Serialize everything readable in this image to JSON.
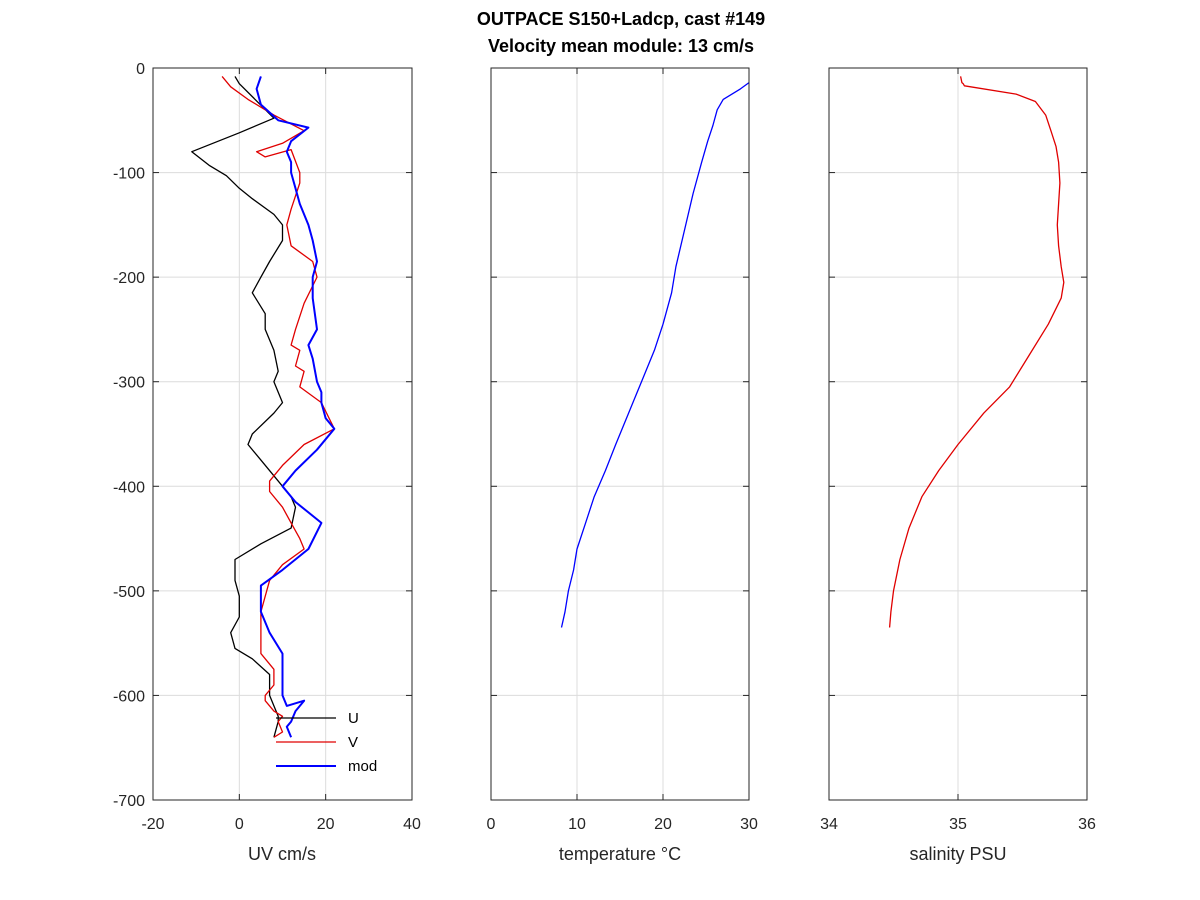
{
  "chart_data": {
    "title": "OUTPACE S150+Ladcp, cast #149",
    "subtitle": "Velocity mean module:  13 cm/s",
    "panels": [
      {
        "type": "line",
        "xlabel": "UV cm/s",
        "xlim": [
          -20,
          40
        ],
        "ylim": [
          -700,
          0
        ],
        "xticks": [
          -20,
          0,
          20,
          40
        ],
        "yticks": [
          0,
          -100,
          -200,
          -300,
          -400,
          -500,
          -600,
          -700
        ],
        "grid": true,
        "legend": {
          "placement": "bottom-right",
          "entries": [
            "U",
            "V",
            "mod"
          ]
        },
        "series": [
          {
            "name": "U",
            "color": "#000000",
            "x": [
              -1,
              0,
              8,
              0,
              -11,
              -7,
              -3,
              0,
              3,
              8,
              10,
              10,
              7,
              5,
              3,
              6,
              6,
              8,
              9,
              8,
              10,
              8,
              3,
              2,
              5,
              8,
              12,
              13,
              12,
              5,
              -1,
              -1,
              0,
              0,
              -2,
              -1,
              3,
              7,
              7,
              8,
              9,
              9,
              8
            ],
            "y": [
              -8,
              -15,
              -48,
              -62,
              -80,
              -93,
              -103,
              -115,
              -125,
              -140,
              -150,
              -165,
              -185,
              -200,
              -215,
              -235,
              -250,
              -270,
              -290,
              -300,
              -320,
              -330,
              -350,
              -360,
              -375,
              -390,
              -410,
              -420,
              -440,
              -455,
              -470,
              -490,
              -505,
              -525,
              -540,
              -555,
              -565,
              -580,
              -600,
              -610,
              -620,
              -625,
              -640
            ]
          },
          {
            "name": "V",
            "color": "#e00000",
            "x": [
              -4,
              -2,
              2,
              8,
              15,
              10,
              4,
              6,
              12,
              14,
              14,
              12,
              11,
              12,
              17,
              18,
              15,
              13,
              12,
              14,
              13,
              15,
              14,
              19,
              22,
              15,
              10,
              7,
              7,
              10,
              12,
              14,
              15,
              10,
              7,
              5,
              5,
              8,
              8,
              6,
              6,
              8,
              10,
              9,
              10,
              8
            ],
            "y": [
              -8,
              -18,
              -30,
              -45,
              -60,
              -72,
              -80,
              -85,
              -78,
              -100,
              -110,
              -135,
              -150,
              -170,
              -185,
              -200,
              -225,
              -250,
              -265,
              -270,
              -285,
              -290,
              -305,
              -320,
              -345,
              -360,
              -380,
              -395,
              -405,
              -420,
              -435,
              -450,
              -460,
              -475,
              -490,
              -520,
              -560,
              -575,
              -590,
              -600,
              -605,
              -615,
              -620,
              -625,
              -635,
              -640
            ]
          },
          {
            "name": "mod",
            "color": "#0000ff",
            "x": [
              5,
              4,
              5,
              9,
              16,
              12,
              11,
              12,
              12,
              13,
              14,
              16,
              17,
              18,
              17,
              17,
              18,
              16,
              17,
              18,
              19,
              19,
              20,
              22,
              18,
              13,
              10,
              13,
              16,
              19,
              16,
              10,
              5,
              5,
              7,
              10,
              10,
              10,
              11,
              15,
              13,
              12,
              11,
              12
            ],
            "y": [
              -8,
              -20,
              -35,
              -50,
              -57,
              -70,
              -80,
              -90,
              -100,
              -115,
              -130,
              -150,
              -165,
              -185,
              -200,
              -220,
              -250,
              -265,
              -278,
              -300,
              -310,
              -320,
              -335,
              -345,
              -365,
              -385,
              -400,
              -415,
              -425,
              -435,
              -460,
              -480,
              -495,
              -520,
              -540,
              -560,
              -580,
              -600,
              -610,
              -605,
              -615,
              -625,
              -630,
              -640
            ]
          }
        ]
      },
      {
        "type": "line",
        "xlabel": "temperature °C",
        "xlim": [
          0,
          30
        ],
        "ylim": [
          -700,
          0
        ],
        "xticks": [
          0,
          10,
          20,
          30
        ],
        "grid": true,
        "series": [
          {
            "color": "#0000ff",
            "x": [
              30,
              29,
              27,
              26.3,
              25.8,
              25.2,
              24.5,
              23.5,
              22.5,
              21.5,
              21,
              20,
              19,
              17.5,
              16,
              14.5,
              13.3,
              12,
              11,
              10,
              9.6,
              9,
              8.6,
              8.2
            ],
            "y": [
              -14,
              -20,
              -30,
              -40,
              -55,
              -70,
              -90,
              -120,
              -155,
              -190,
              -215,
              -245,
              -270,
              -300,
              -330,
              -360,
              -385,
              -410,
              -435,
              -460,
              -480,
              -500,
              -520,
              -535
            ]
          }
        ]
      },
      {
        "type": "line",
        "xlabel": "salinity PSU",
        "xlim": [
          34,
          36
        ],
        "ylim": [
          -700,
          0
        ],
        "xticks": [
          34,
          35,
          36
        ],
        "grid": true,
        "series": [
          {
            "color": "#e00000",
            "x": [
              35.02,
              35.03,
              35.04,
              35.05,
              35.45,
              35.6,
              35.68,
              35.72,
              35.76,
              35.78,
              35.79,
              35.78,
              35.77,
              35.78,
              35.8,
              35.82,
              35.8,
              35.7,
              35.55,
              35.4,
              35.2,
              35.0,
              34.85,
              34.72,
              34.62,
              34.55,
              34.5,
              34.48,
              34.47
            ],
            "y": [
              -8,
              -14,
              -15,
              -17,
              -25,
              -32,
              -45,
              -60,
              -75,
              -90,
              -110,
              -130,
              -150,
              -170,
              -190,
              -205,
              -220,
              -245,
              -275,
              -305,
              -330,
              -360,
              -385,
              -410,
              -440,
              -470,
              -500,
              -520,
              -535
            ]
          }
        ]
      }
    ]
  }
}
